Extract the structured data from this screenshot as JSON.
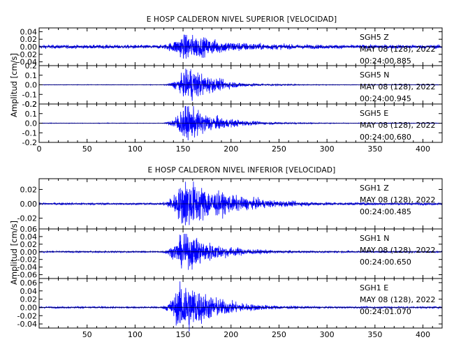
{
  "chart_data": [
    {
      "type": "line",
      "title": "E HOSP CALDERON NIVEL SUPERIOR [VELOCIDAD]",
      "ylabel": "Amplitud [cm/s]",
      "xlim": [
        0,
        420
      ],
      "x_ticks": [
        0,
        50,
        100,
        150,
        200,
        250,
        300,
        350,
        400
      ],
      "x_tick_labels": [
        "0",
        "50",
        "100",
        "150",
        "200",
        "250",
        "300",
        "350",
        "400"
      ],
      "color": "#0000ff",
      "panels": [
        {
          "station": "SGH5",
          "component": "Z",
          "date": "MAY 08 (128), 2022",
          "time": "00:24:00.885",
          "ylim": [
            -0.05,
            0.05
          ],
          "y_ticks": [
            -0.04,
            -0.02,
            0.0,
            0.02,
            0.04
          ],
          "y_tick_labels": [
            "-0.04",
            "-0.02",
            "0.00",
            "0.02",
            "0.04"
          ],
          "noise": 0.004,
          "peak": 0.03,
          "onset": 125,
          "peak_time": 152,
          "decay": 35
        },
        {
          "station": "SGH5",
          "component": "N",
          "date": "MAY 08 (128), 2022",
          "time": "00:24:00.945",
          "ylim": [
            -0.2,
            0.2
          ],
          "y_ticks": [
            -0.2,
            -0.1,
            0.0,
            0.1,
            0.2
          ],
          "y_tick_labels": [
            "-0.2",
            "-0.1",
            "0.0",
            "0.1",
            "0.2"
          ],
          "noise": 0.002,
          "peak": 0.16,
          "onset": 128,
          "peak_time": 157,
          "decay": 25
        },
        {
          "station": "SGH5",
          "component": "E",
          "date": "MAY 08 (128), 2022",
          "time": "00:24:00.680",
          "ylim": [
            -0.2,
            0.2
          ],
          "y_ticks": [
            -0.2,
            -0.1,
            0.0,
            0.1,
            0.2
          ],
          "y_tick_labels": [
            "-0.2",
            "-0.1",
            "0.0",
            "0.1",
            "0.2"
          ],
          "noise": 0.002,
          "peak": 0.17,
          "onset": 128,
          "peak_time": 152,
          "decay": 30
        }
      ]
    },
    {
      "type": "line",
      "title": "E HOSP CALDERON NIVEL INFERIOR [VELOCIDAD]",
      "ylabel": "Amplitud [cm/s]",
      "xlim": [
        0,
        420
      ],
      "x_ticks": [
        50,
        100,
        150,
        200,
        250,
        300,
        350,
        400
      ],
      "x_tick_labels": [
        "50",
        "100",
        "150",
        "200",
        "250",
        "300",
        "350",
        "400"
      ],
      "color": "#0000ff",
      "panels": [
        {
          "station": "SGH1",
          "component": "Z",
          "date": "MAY 08 (128), 2022",
          "time": "00:24:00.485",
          "ylim": [
            -0.035,
            0.035
          ],
          "y_ticks": [
            -0.02,
            0.0,
            0.02
          ],
          "y_tick_labels": [
            "-0.02",
            "0.00",
            "0.02"
          ],
          "noise": 0.0012,
          "peak": 0.03,
          "onset": 125,
          "peak_time": 152,
          "decay": 40
        },
        {
          "station": "SGH1",
          "component": "N",
          "date": "MAY 08 (128), 2022",
          "time": "00:24:00.650",
          "ylim": [
            -0.07,
            0.06
          ],
          "y_ticks": [
            -0.06,
            -0.04,
            -0.02,
            0.0,
            0.02,
            0.04,
            0.06
          ],
          "y_tick_labels": [
            "-0.06",
            "-0.04",
            "-0.02",
            "0.00",
            "0.02",
            "0.04",
            "0.06"
          ],
          "noise": 0.0015,
          "peak": 0.045,
          "onset": 125,
          "peak_time": 152,
          "decay": 30
        },
        {
          "station": "SGH1",
          "component": "E",
          "date": "MAY 08 (128), 2022",
          "time": "00:24:01.070",
          "ylim": [
            -0.05,
            0.07
          ],
          "y_ticks": [
            -0.04,
            -0.02,
            0.0,
            0.02,
            0.04,
            0.06
          ],
          "y_tick_labels": [
            "-0.04",
            "-0.02",
            "0.00",
            "0.02",
            "0.04",
            "0.06"
          ],
          "noise": 0.0015,
          "peak": 0.06,
          "onset": 125,
          "peak_time": 150,
          "decay": 30
        }
      ]
    }
  ]
}
